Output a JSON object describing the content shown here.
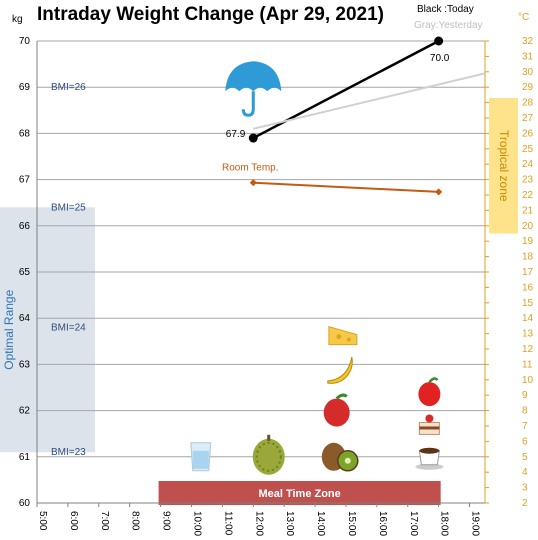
{
  "chart_data": {
    "type": "line",
    "title": "Intraday Weight Change (Apr 29, 2021)",
    "y_left_unit": "kg",
    "y_right_unit": "°C",
    "legend": {
      "today": "Black :Today",
      "yesterday": "Gray:Yesterday"
    },
    "x_ticks": [
      "5:00",
      "6:00",
      "7:00",
      "8:00",
      "9:00",
      "10:00",
      "11:00",
      "12:00",
      "13:00",
      "14:00",
      "15:00",
      "16:00",
      "17:00",
      "18:00",
      "19:00"
    ],
    "x_hours": [
      5,
      6,
      7,
      8,
      9,
      10,
      11,
      12,
      13,
      14,
      15,
      16,
      17,
      18,
      19
    ],
    "xlim": [
      5,
      19.5
    ],
    "ylim_left": [
      60,
      70
    ],
    "ylim_right": [
      2,
      32
    ],
    "y_left_ticks": [
      60,
      61,
      62,
      63,
      64,
      65,
      66,
      67,
      68,
      69,
      70
    ],
    "y_right_ticks": [
      2,
      3,
      4,
      5,
      6,
      7,
      8,
      9,
      10,
      11,
      12,
      13,
      14,
      15,
      16,
      17,
      18,
      19,
      20,
      21,
      22,
      23,
      24,
      25,
      26,
      27,
      28,
      29,
      30,
      31,
      32
    ],
    "series": [
      {
        "name": "Today",
        "color": "#000000",
        "x": [
          12.0,
          18.0
        ],
        "y": [
          67.9,
          70.0
        ],
        "labels": [
          "67.9",
          "70.0"
        ]
      },
      {
        "name": "Yesterday",
        "color": "#d0d0d0",
        "x": [
          12.0,
          19.5
        ],
        "y": [
          68.1,
          69.3
        ]
      },
      {
        "name": "Room Temp.",
        "color": "#c55a11",
        "axis": "right",
        "x": [
          12.0,
          18.0
        ],
        "y": [
          22.8,
          22.2
        ]
      }
    ],
    "room_temp_label": "Room Temp.",
    "bmi_lines": [
      {
        "label": "BMI=26",
        "kg": 69
      },
      {
        "label": "BMI=25",
        "kg": 66.4
      },
      {
        "label": "BMI=24",
        "kg": 63.8
      },
      {
        "label": "BMI=23",
        "kg": 61.1
      }
    ],
    "optimal_range": {
      "label": "Optimal Range",
      "from_kg": 61.1,
      "to_kg": 66.4
    },
    "tropical_zone": {
      "label": "Tropical zone",
      "from_c": 19.5,
      "to_c": 32
    },
    "meal_zone": {
      "label": "Meal Time Zone",
      "from_h": 9.0,
      "to_h": 18.0
    },
    "grid": true,
    "legend_position": "top-right",
    "icons": [
      {
        "name": "umbrella-icon",
        "hour": 12.0,
        "kg": 69.0
      },
      {
        "name": "water-glass-icon",
        "hour": 10.3,
        "kg": 61.0
      },
      {
        "name": "durian-icon",
        "hour": 12.5,
        "kg": 61.0
      },
      {
        "name": "kiwi-icon",
        "hour": 14.8,
        "kg": 61.0
      },
      {
        "name": "apple-red-icon",
        "hour": 14.7,
        "kg": 62.0
      },
      {
        "name": "banana-icon",
        "hour": 14.8,
        "kg": 62.9
      },
      {
        "name": "cheese-icon",
        "hour": 14.9,
        "kg": 63.6
      },
      {
        "name": "coffee-cup-icon",
        "hour": 17.7,
        "kg": 61.0
      },
      {
        "name": "cake-icon",
        "hour": 17.7,
        "kg": 61.7
      },
      {
        "name": "apple-icon",
        "hour": 17.7,
        "kg": 62.4
      }
    ]
  }
}
